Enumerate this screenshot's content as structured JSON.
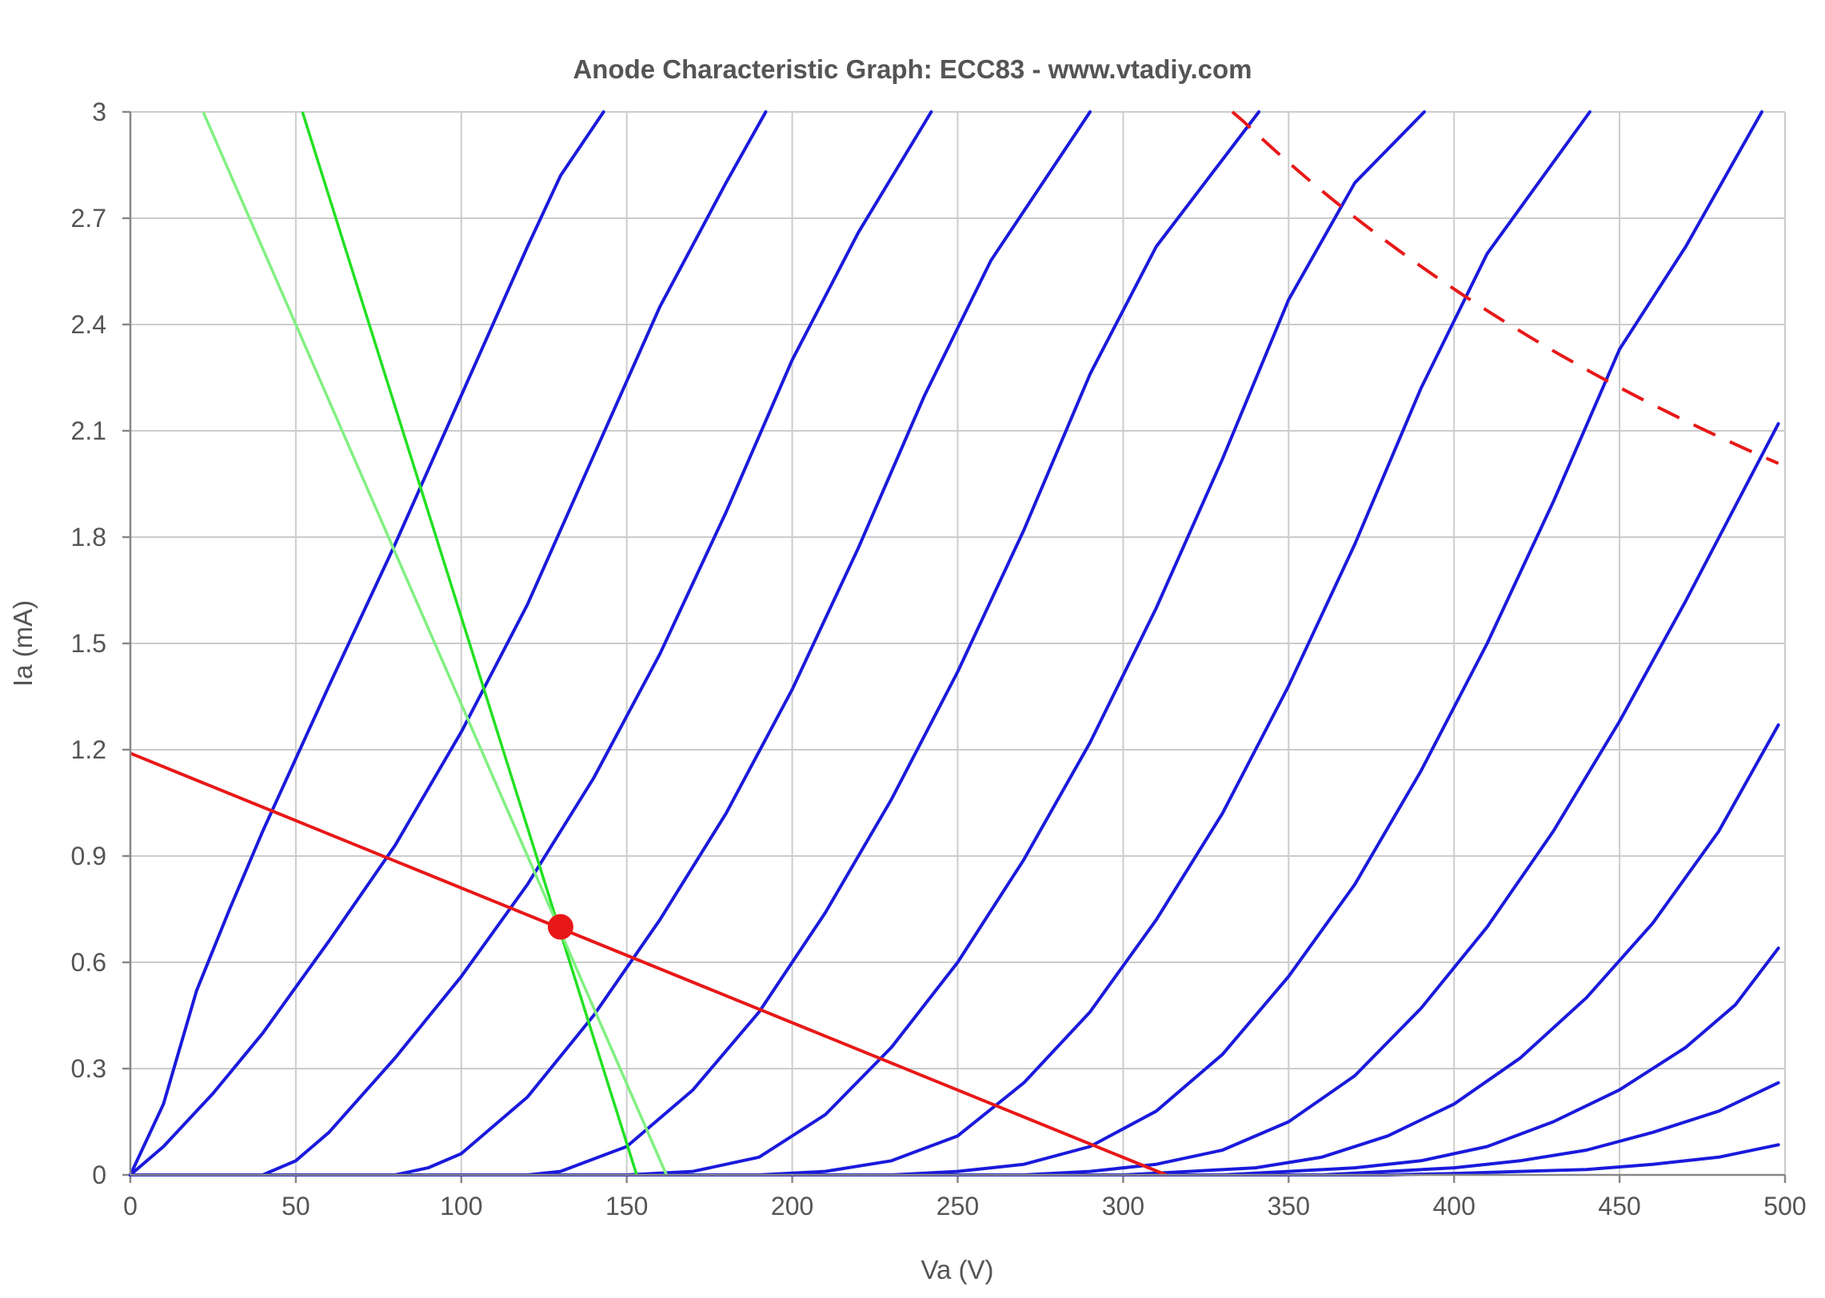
{
  "chart_data": {
    "type": "line",
    "title": "Anode Characteristic Graph: ECC83 - www.vtadiy.com",
    "xlabel": "Va (V)",
    "ylabel": "Ia (mA)",
    "xlim": [
      0,
      500
    ],
    "ylim": [
      0,
      3
    ],
    "x_ticks": [
      "0",
      "50",
      "100",
      "150",
      "200",
      "250",
      "300",
      "350",
      "400",
      "450",
      "500"
    ],
    "y_ticks": [
      "0",
      "0.3",
      "0.6",
      "0.9",
      "1.2",
      "1.5",
      "1.8",
      "2.1",
      "2.4",
      "2.7",
      "3"
    ],
    "grid": true,
    "curve_color": "#1a1adc",
    "grid_curves": [
      {
        "points": [
          [
            0,
            0
          ],
          [
            10,
            0.2
          ],
          [
            20,
            0.52
          ],
          [
            30,
            0.75
          ],
          [
            40,
            0.97
          ],
          [
            60,
            1.38
          ],
          [
            80,
            1.78
          ],
          [
            100,
            2.2
          ],
          [
            120,
            2.62
          ],
          [
            130,
            2.82
          ],
          [
            143,
            3.0
          ]
        ]
      },
      {
        "points": [
          [
            0,
            0
          ],
          [
            10,
            0.08
          ],
          [
            25,
            0.23
          ],
          [
            40,
            0.4
          ],
          [
            60,
            0.66
          ],
          [
            80,
            0.93
          ],
          [
            100,
            1.25
          ],
          [
            120,
            1.61
          ],
          [
            140,
            2.03
          ],
          [
            160,
            2.45
          ],
          [
            180,
            2.8
          ],
          [
            192,
            3.0
          ]
        ]
      },
      {
        "points": [
          [
            0,
            0
          ],
          [
            40,
            0.0
          ],
          [
            50,
            0.04
          ],
          [
            60,
            0.12
          ],
          [
            80,
            0.33
          ],
          [
            100,
            0.56
          ],
          [
            120,
            0.82
          ],
          [
            140,
            1.12
          ],
          [
            160,
            1.47
          ],
          [
            180,
            1.87
          ],
          [
            200,
            2.3
          ],
          [
            220,
            2.66
          ],
          [
            242,
            3.0
          ]
        ]
      },
      {
        "points": [
          [
            0,
            0
          ],
          [
            80,
            0.0
          ],
          [
            90,
            0.02
          ],
          [
            100,
            0.06
          ],
          [
            120,
            0.22
          ],
          [
            140,
            0.45
          ],
          [
            160,
            0.72
          ],
          [
            180,
            1.02
          ],
          [
            200,
            1.37
          ],
          [
            220,
            1.77
          ],
          [
            240,
            2.2
          ],
          [
            260,
            2.58
          ],
          [
            290,
            3.0
          ]
        ]
      },
      {
        "points": [
          [
            0,
            0
          ],
          [
            120,
            0.0
          ],
          [
            130,
            0.01
          ],
          [
            150,
            0.08
          ],
          [
            170,
            0.24
          ],
          [
            190,
            0.46
          ],
          [
            210,
            0.74
          ],
          [
            230,
            1.06
          ],
          [
            250,
            1.42
          ],
          [
            270,
            1.82
          ],
          [
            290,
            2.26
          ],
          [
            310,
            2.62
          ],
          [
            341,
            3.0
          ]
        ]
      },
      {
        "points": [
          [
            0,
            0
          ],
          [
            150,
            0.0
          ],
          [
            170,
            0.01
          ],
          [
            190,
            0.05
          ],
          [
            210,
            0.17
          ],
          [
            230,
            0.36
          ],
          [
            250,
            0.6
          ],
          [
            270,
            0.89
          ],
          [
            290,
            1.22
          ],
          [
            310,
            1.6
          ],
          [
            330,
            2.02
          ],
          [
            350,
            2.47
          ],
          [
            370,
            2.8
          ],
          [
            391,
            3.0
          ]
        ]
      },
      {
        "points": [
          [
            0,
            0
          ],
          [
            190,
            0.0
          ],
          [
            210,
            0.01
          ],
          [
            230,
            0.04
          ],
          [
            250,
            0.11
          ],
          [
            270,
            0.26
          ],
          [
            290,
            0.46
          ],
          [
            310,
            0.72
          ],
          [
            330,
            1.02
          ],
          [
            350,
            1.38
          ],
          [
            370,
            1.78
          ],
          [
            390,
            2.22
          ],
          [
            410,
            2.6
          ],
          [
            441,
            3.0
          ]
        ]
      },
      {
        "points": [
          [
            0,
            0
          ],
          [
            230,
            0.0
          ],
          [
            250,
            0.01
          ],
          [
            270,
            0.03
          ],
          [
            290,
            0.08
          ],
          [
            310,
            0.18
          ],
          [
            330,
            0.34
          ],
          [
            350,
            0.56
          ],
          [
            370,
            0.82
          ],
          [
            390,
            1.14
          ],
          [
            410,
            1.5
          ],
          [
            430,
            1.9
          ],
          [
            450,
            2.33
          ],
          [
            470,
            2.62
          ],
          [
            493,
            3.0
          ]
        ]
      },
      {
        "points": [
          [
            0,
            0
          ],
          [
            270,
            0.0
          ],
          [
            290,
            0.01
          ],
          [
            310,
            0.03
          ],
          [
            330,
            0.07
          ],
          [
            350,
            0.15
          ],
          [
            370,
            0.28
          ],
          [
            390,
            0.47
          ],
          [
            410,
            0.7
          ],
          [
            430,
            0.97
          ],
          [
            450,
            1.28
          ],
          [
            470,
            1.62
          ],
          [
            498,
            2.12
          ]
        ]
      },
      {
        "points": [
          [
            0,
            0
          ],
          [
            300,
            0.0
          ],
          [
            320,
            0.01
          ],
          [
            340,
            0.02
          ],
          [
            360,
            0.05
          ],
          [
            380,
            0.11
          ],
          [
            400,
            0.2
          ],
          [
            420,
            0.33
          ],
          [
            440,
            0.5
          ],
          [
            460,
            0.71
          ],
          [
            480,
            0.97
          ],
          [
            498,
            1.27
          ]
        ]
      },
      {
        "points": [
          [
            0,
            0
          ],
          [
            330,
            0.0
          ],
          [
            350,
            0.01
          ],
          [
            370,
            0.02
          ],
          [
            390,
            0.04
          ],
          [
            410,
            0.08
          ],
          [
            430,
            0.15
          ],
          [
            450,
            0.24
          ],
          [
            470,
            0.36
          ],
          [
            485,
            0.48
          ],
          [
            498,
            0.64
          ]
        ]
      },
      {
        "points": [
          [
            0,
            0
          ],
          [
            360,
            0.0
          ],
          [
            380,
            0.01
          ],
          [
            400,
            0.02
          ],
          [
            420,
            0.04
          ],
          [
            440,
            0.07
          ],
          [
            460,
            0.12
          ],
          [
            480,
            0.18
          ],
          [
            498,
            0.26
          ]
        ]
      },
      {
        "points": [
          [
            0,
            0
          ],
          [
            380,
            0.0
          ],
          [
            400,
            0.004
          ],
          [
            420,
            0.01
          ],
          [
            440,
            0.015
          ],
          [
            460,
            0.03
          ],
          [
            480,
            0.05
          ],
          [
            498,
            0.085
          ]
        ]
      }
    ],
    "load_line": {
      "color": "#e81818",
      "points": [
        [
          0,
          1.19
        ],
        [
          313,
          0.0
        ]
      ]
    },
    "operating_point": {
      "color": "#e81818",
      "va": 130,
      "ia": 0.7
    },
    "max_dissipation": {
      "color": "#e81818",
      "watts": 1.0,
      "va_range": [
        333,
        498
      ]
    },
    "tangent_lines": [
      {
        "color": "#22e022",
        "points": [
          [
            52,
            3.0
          ],
          [
            153,
            0.0
          ]
        ]
      },
      {
        "color": "#80f080",
        "points": [
          [
            22,
            3.0
          ],
          [
            162,
            0.0
          ]
        ]
      }
    ]
  }
}
